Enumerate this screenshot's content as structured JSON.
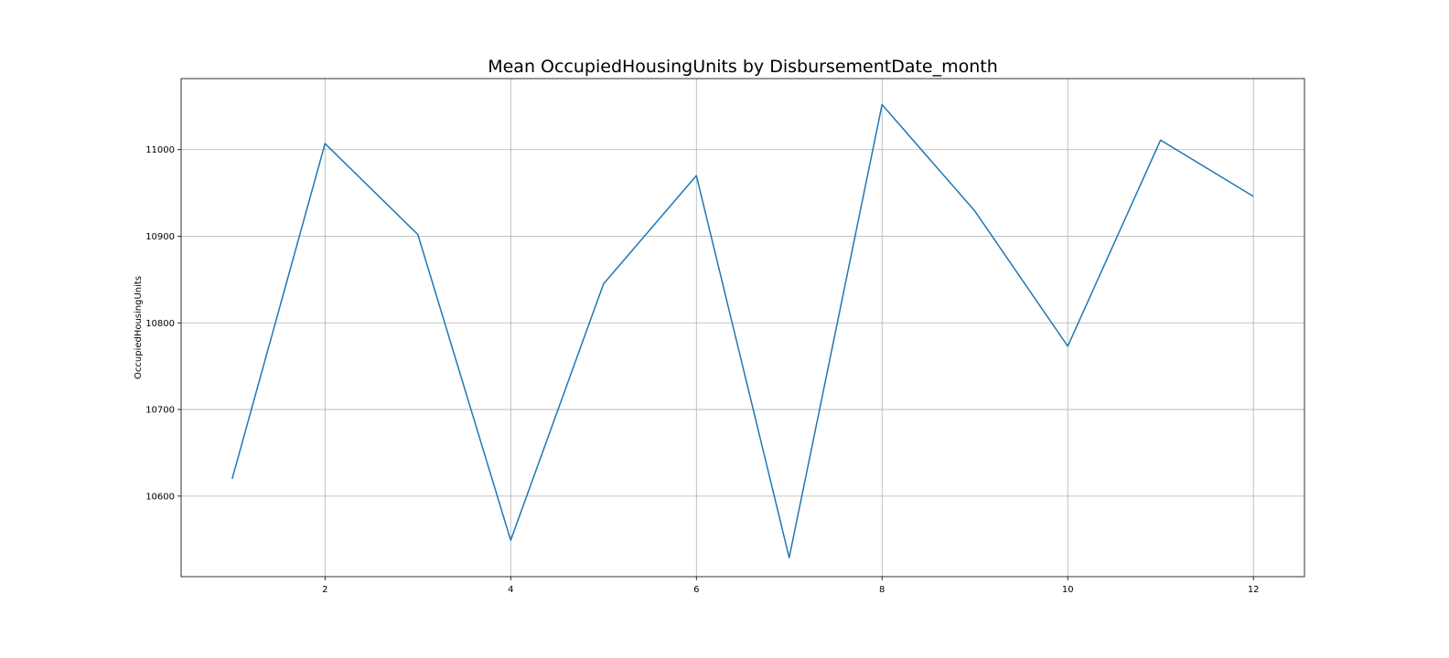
{
  "chart_data": {
    "type": "line",
    "title": "Mean OccupiedHousingUnits by DisbursementDate_month",
    "xlabel": "",
    "ylabel": "OccupiedHousingUnits",
    "x": [
      1,
      2,
      3,
      4,
      5,
      6,
      7,
      8,
      9,
      10,
      11,
      12
    ],
    "series": [
      {
        "values": [
          10620,
          11007,
          10902,
          10549,
          10845,
          10970,
          10529,
          11052,
          10929,
          10773,
          11011,
          10946
        ],
        "color": "#1f77b4"
      }
    ],
    "xlim": [
      0.45,
      12.55
    ],
    "ylim": [
      10507,
      11082
    ],
    "xticks": [
      2,
      4,
      6,
      8,
      10,
      12
    ],
    "xtick_labels": [
      "2",
      "4",
      "6",
      "8",
      "10",
      "12"
    ],
    "yticks": [
      10600,
      10700,
      10800,
      10900,
      11000
    ],
    "ytick_labels": [
      "10600",
      "10700",
      "10800",
      "10900",
      "11000"
    ],
    "grid": true,
    "legend": false
  }
}
